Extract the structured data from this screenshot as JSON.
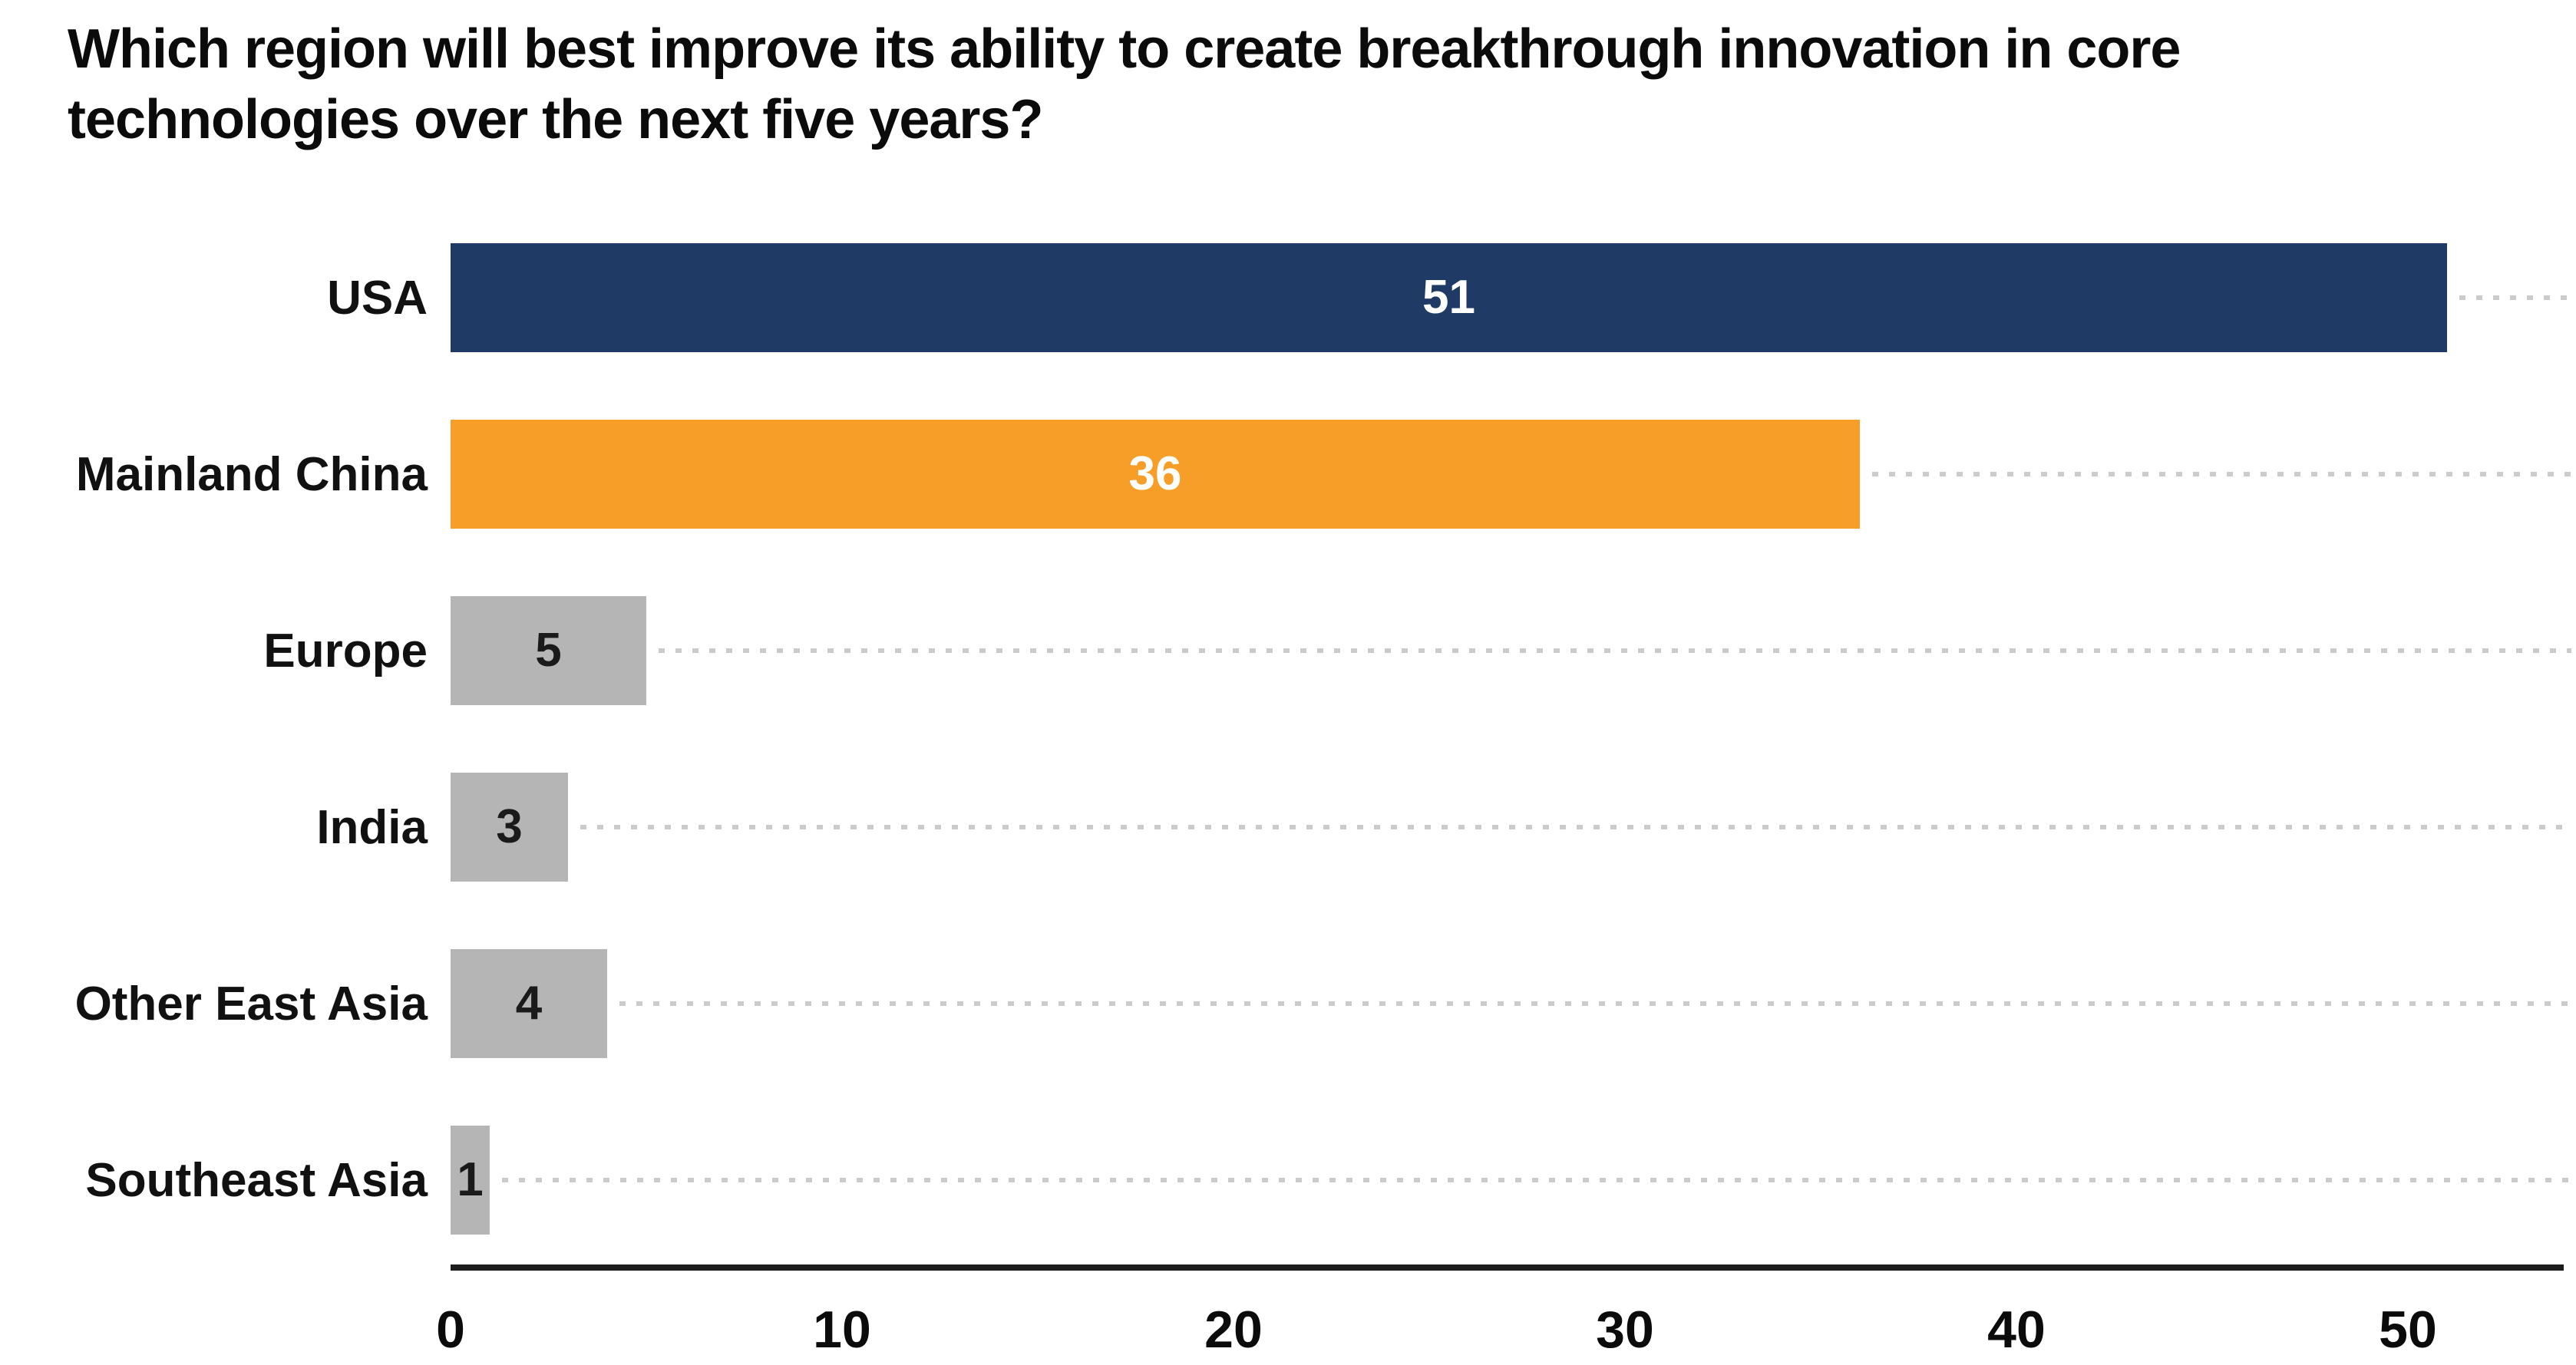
{
  "chart_data": {
    "type": "bar",
    "orientation": "horizontal",
    "title": "Which region will best improve its ability to create breakthrough innovation in core technologies over the next five years?",
    "title_lines": [
      "Which region will best improve its ability to create breakthrough innovation in core",
      "technologies over the next five years?"
    ],
    "categories": [
      "USA",
      "Mainland China",
      "Europe",
      "India",
      "Other East Asia",
      "Southeast Asia"
    ],
    "values": [
      51,
      36,
      5,
      3,
      4,
      1
    ],
    "value_labels": [
      "51",
      "36",
      "5",
      "3",
      "4",
      "1"
    ],
    "bar_colors": [
      "#1F3A64",
      "#F69E27",
      "#B5B5B5",
      "#B5B5B5",
      "#B5B5B5",
      "#B5B5B5"
    ],
    "value_label_colors": [
      "#FFFFFF",
      "#FFFFFF",
      "#1A1A1A",
      "#1A1A1A",
      "#1A1A1A",
      "#1A1A1A"
    ],
    "xlabel": "",
    "ylabel": "",
    "xlim": [
      0,
      54
    ],
    "x_ticks": [
      0,
      10,
      20,
      30,
      40,
      50
    ],
    "x_tick_labels": [
      "0",
      "10",
      "20",
      "30",
      "40",
      "50"
    ],
    "grid": "dotted-row-leader-lines",
    "legend": "none",
    "colors": {
      "highlight_primary": "#1F3A64",
      "highlight_secondary": "#F69E27",
      "muted_bar": "#B5B5B5",
      "leader_line": "#CBCBCB",
      "axis_line": "#1D1D1D",
      "title_text": "#0B0B0B",
      "background": "#FFFFFF"
    }
  }
}
